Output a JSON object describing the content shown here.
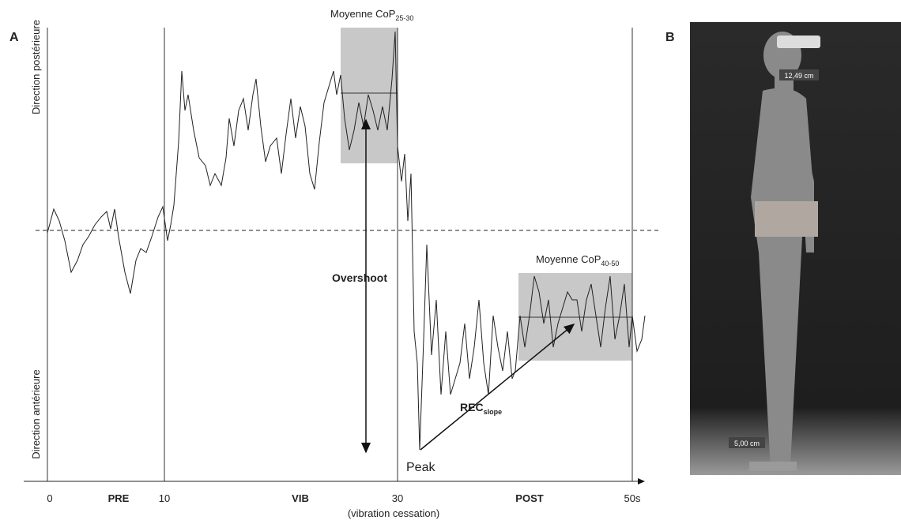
{
  "panel_a": {
    "label": "A",
    "y_top_label": "Direction postérieure",
    "y_bottom_label": "Direction antérieure",
    "box1": {
      "title": "Moyenne CoP",
      "subscript": "25-30"
    },
    "box2": {
      "title": "Moyenne CoP",
      "subscript": "40-50"
    },
    "overshoot": "Overshoot",
    "rec": {
      "title": "REC",
      "subscript": "slope"
    },
    "peak": "Peak",
    "x_labels": [
      "0",
      "PRE",
      "10",
      "VIB",
      "30",
      "POST",
      "50s"
    ],
    "x_note": "(vibration cessation)"
  },
  "panel_b": {
    "label": "B",
    "measure_top": "12,49 cm",
    "measure_bottom": "5,00 cm"
  }
}
